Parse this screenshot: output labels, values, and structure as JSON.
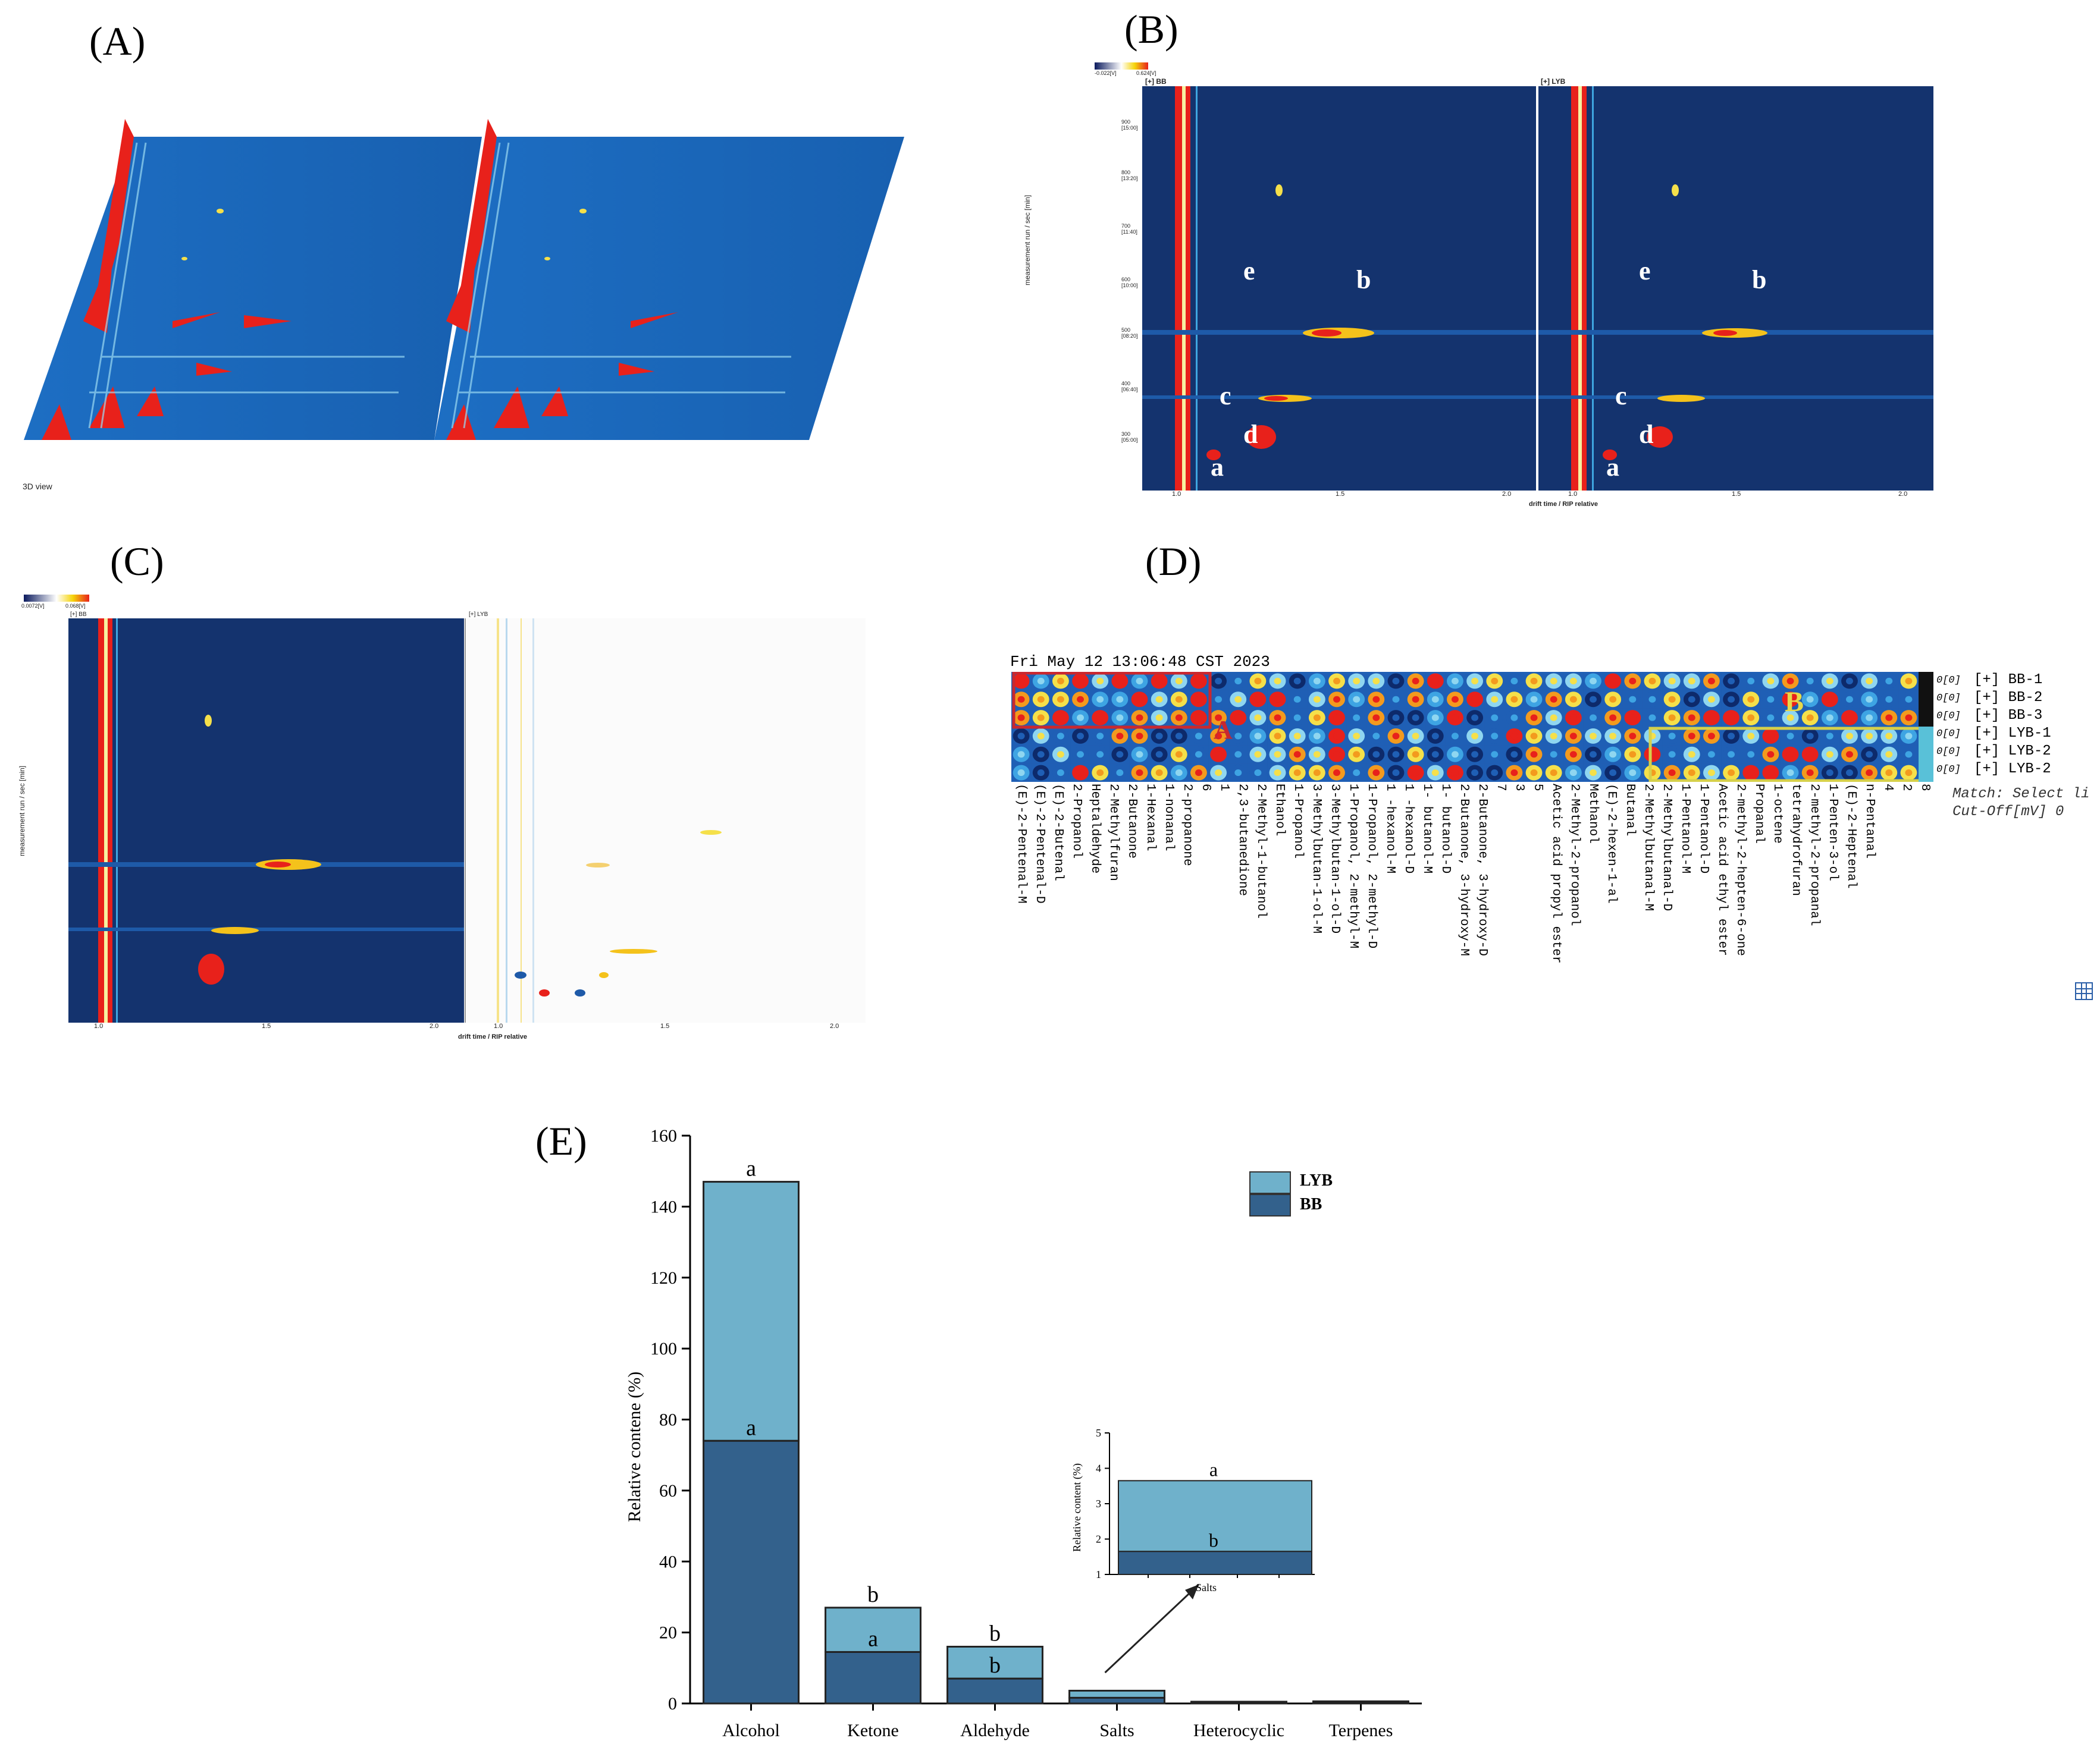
{
  "panels": {
    "A": {
      "label": "(A)",
      "view_note": "3D view"
    },
    "B": {
      "label": "(B)",
      "left_title": "[+] BB",
      "right_title": "[+] LYB",
      "y_axis_label": "measurement run / sec [min]",
      "x_axis_label": "drift time / RIP relative",
      "x_ticks": [
        "1.0",
        "1.5",
        "2.0"
      ],
      "y_ticks": [
        "900 [15:00]",
        "800 [13:20]",
        "700 [11:40]",
        "600 [10:00]",
        "500 [08:20]",
        "400 [06:40]",
        "300 [05:00]"
      ],
      "peak_letters": [
        "e",
        "b",
        "c",
        "d",
        "a"
      ],
      "scale_min": "-0.022[V]",
      "scale_max": "0.624[V]"
    },
    "C": {
      "label": "(C)",
      "left_title": "[+] BB",
      "right_title": "[+] LYB",
      "y_axis_label": "measurement run / sec [min]",
      "x_axis_label": "drift time / RIP relative",
      "x_ticks": [
        "1.0",
        "1.5",
        "2.0"
      ],
      "scale_min": "0.0072[V]",
      "scale_max": "0.068[V]"
    },
    "D": {
      "label": "(D)",
      "timestamp": "Fri May 12 13:06:48 CST 2023",
      "rows": [
        "[+] BB-1",
        "[+] BB-2",
        "[+] BB-3",
        "[+] LYB-1",
        "[+] LYB-2",
        "[+] LYB-2"
      ],
      "row_values": [
        "0[0]",
        "0[0]",
        "0[0]",
        "0[0]",
        "0[0]",
        "0[0]"
      ],
      "box_A": "A",
      "box_B": "B",
      "match_line": "Match: Select li",
      "cutoff_line": "Cut-Off[mV] 0",
      "compounds": [
        "(E)-2-Pentenal-M",
        "(E)-2-Pentenal-D",
        "(E)-2-Butenal",
        "2-Propanol",
        "Heptaldehyde",
        "2-Methylfuran",
        "2-Butanone",
        "1-Hexanal",
        "1-nonanal",
        "2-propanone",
        "6",
        "1",
        "2,3-butanedione",
        "2-Methyl-1-butanol",
        "Ethanol",
        "1-Propanol",
        "3-Methylbutan-1-ol-M",
        "3-Methylbutan-1-ol-D",
        "1-Propanol, 2-methyl-M",
        "1-Propanol, 2-methyl-D",
        "1 -hexanol-M",
        "1 -hexanol-D",
        "1- butanol-M",
        "1- butanol-D",
        "2-Butanone, 3-hydroxy-M",
        "2-Butanone, 3-hydroxy-D",
        "7",
        "3",
        "5",
        "Acetic acid propyl ester",
        "2-Methyl-2-propanol",
        "Methanol",
        "(E)-2-hexen-1-al",
        "Butanal",
        "2-Methylbutanal-M",
        "2-Methylbutanal-D",
        "1-Pentanol-M",
        "1-Pentanol-D",
        "Acetic acid ethyl ester",
        "2-methyl-2-hepten-6-one",
        "Propanal",
        "1-octene",
        "tetrahydrofuran",
        "2-methyl-2-propanal",
        "1-Penten-3-ol",
        "(E)-2-Heptenal",
        "n-Pentanal",
        "4",
        "2",
        "8"
      ]
    },
    "E": {
      "label": "(E)"
    }
  },
  "chart_data": {
    "type": "bar",
    "stacked": true,
    "categories": [
      "Alcohol",
      "Ketone",
      "Aldehyde",
      "Salts",
      "Heterocyclic",
      "Terpenes"
    ],
    "series": [
      {
        "name": "BB",
        "color": "#33618c",
        "values": [
          74,
          14.5,
          7,
          1.6,
          0.3,
          0.4
        ]
      },
      {
        "name": "LYB",
        "color": "#6fb1cb",
        "values": [
          73,
          12.5,
          9,
          2.0,
          0.2,
          0.2
        ]
      }
    ],
    "significance": {
      "BB": [
        "a",
        "a",
        "b",
        "",
        "",
        ""
      ],
      "total": [
        "a",
        "b",
        "b",
        "",
        "",
        ""
      ]
    },
    "ylabel": "Relative contene (%)",
    "xlabel": "",
    "ylim": [
      0,
      160
    ],
    "yticks": [
      "0",
      "20",
      "40",
      "60",
      "80",
      "100",
      "120",
      "140",
      "160"
    ],
    "legend": [
      "LYB",
      "BB"
    ],
    "legend_position": "top-right",
    "inset": {
      "category": "Salts",
      "ylabel": "Relative content (%)",
      "ylim": [
        1,
        5
      ],
      "yticks": [
        "1",
        "2",
        "3",
        "4",
        "5"
      ],
      "BB": 1.65,
      "total": 3.65,
      "letter_total": "a",
      "letter_BB": "b"
    }
  }
}
